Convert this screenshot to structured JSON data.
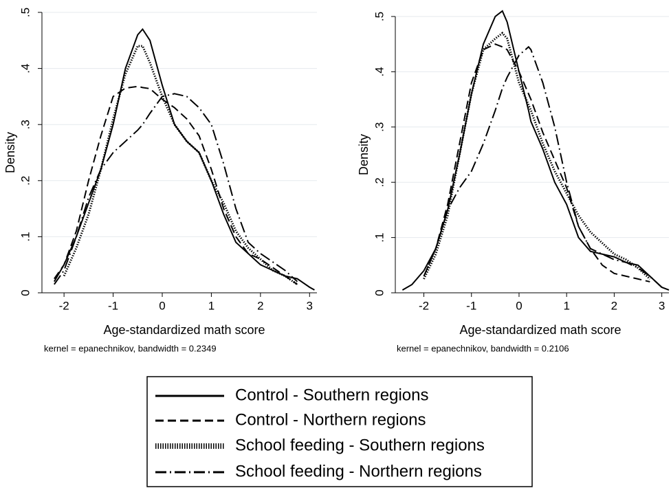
{
  "chart_data": [
    {
      "type": "line",
      "y_label": "Density",
      "x_label": "Age-standardized math score",
      "note": "kernel = epanechnikov, bandwidth = 0.2349",
      "x": [
        -2.2,
        -2,
        -1.75,
        -1.5,
        -1.25,
        -1,
        -0.75,
        -0.5,
        -0.4,
        -0.25,
        0,
        0.25,
        0.5,
        0.75,
        1,
        1.25,
        1.5,
        1.75,
        2,
        2.25,
        2.5,
        2.75,
        3,
        3.1
      ],
      "series": [
        {
          "name": "Control - Southern regions",
          "color": "#000000",
          "line_style": "solid",
          "values": [
            0.02,
            0.05,
            0.1,
            0.16,
            0.22,
            0.3,
            0.4,
            0.46,
            0.47,
            0.45,
            0.37,
            0.3,
            0.27,
            0.25,
            0.2,
            0.14,
            0.09,
            0.07,
            0.05,
            0.04,
            0.03,
            0.025,
            0.01,
            0.005
          ]
        },
        {
          "name": "Control - Northern regions",
          "color": "#000000",
          "line_style": "dashed",
          "values": [
            0.025,
            0.05,
            0.11,
            0.2,
            0.28,
            0.35,
            0.365,
            0.368,
            0.366,
            0.364,
            0.345,
            0.33,
            0.31,
            0.28,
            0.22,
            0.15,
            0.1,
            0.07,
            0.06,
            0.045,
            0.03,
            0.015,
            null,
            null
          ]
        },
        {
          "name": "School feeding - Southern regions",
          "color": "#000000",
          "line_style": "dotted",
          "values": [
            null,
            0.03,
            0.08,
            0.14,
            0.22,
            0.31,
            0.39,
            0.44,
            0.44,
            0.41,
            0.35,
            0.3,
            0.27,
            0.25,
            0.2,
            0.16,
            0.11,
            0.08,
            0.06,
            0.04,
            0.03,
            0.015,
            null,
            null
          ]
        },
        {
          "name": "School feeding - Northern regions",
          "color": "#000000",
          "line_style": "dashdot",
          "values": [
            0.015,
            0.04,
            0.1,
            0.17,
            0.22,
            0.25,
            0.27,
            0.29,
            0.3,
            0.32,
            0.35,
            0.355,
            0.35,
            0.33,
            0.3,
            0.23,
            0.15,
            0.09,
            0.07,
            0.055,
            0.04,
            0.02,
            null,
            null
          ]
        }
      ],
      "xlim": [
        -2.45,
        3.15
      ],
      "xticks": [
        -2,
        -1,
        0,
        1,
        2,
        3
      ],
      "ylim": [
        0,
        0.5
      ],
      "yticks": [
        0,
        {
          "value": 0.1,
          "label": ".1"
        },
        {
          "value": 0.2,
          "label": ".2"
        },
        {
          "value": 0.3,
          "label": ".3"
        },
        {
          "value": 0.4,
          "label": ".4"
        },
        {
          "value": 0.5,
          "label": ".5"
        }
      ],
      "grid": true
    },
    {
      "type": "line",
      "y_label": "Density",
      "x_label": "Age-standardized math score",
      "note": "kernel = epanechnikov, bandwidth = 0.2106",
      "x": [
        -2.45,
        -2.25,
        -2,
        -1.75,
        -1.5,
        -1.25,
        -1,
        -0.75,
        -0.5,
        -0.35,
        -0.25,
        0,
        0.2,
        0.25,
        0.5,
        0.75,
        1,
        1.25,
        1.5,
        1.75,
        2,
        2.25,
        2.5,
        2.75,
        3,
        3.15
      ],
      "series": [
        {
          "name": "Control - Southern regions",
          "color": "#000000",
          "line_style": "solid",
          "values": [
            0.005,
            0.015,
            0.04,
            0.08,
            0.15,
            0.25,
            0.36,
            0.45,
            0.5,
            0.51,
            0.49,
            0.4,
            0.33,
            0.31,
            0.26,
            0.2,
            0.16,
            0.1,
            0.075,
            0.07,
            0.065,
            0.055,
            0.05,
            0.03,
            0.01,
            0.005
          ]
        },
        {
          "name": "Control - Northern regions",
          "color": "#000000",
          "line_style": "dashed",
          "values": [
            null,
            null,
            0.03,
            0.08,
            0.16,
            0.27,
            0.38,
            0.44,
            0.45,
            0.445,
            0.44,
            0.4,
            0.36,
            0.35,
            0.29,
            0.24,
            0.19,
            0.12,
            0.08,
            0.05,
            0.035,
            0.03,
            0.025,
            0.02,
            null,
            null
          ]
        },
        {
          "name": "School feeding - Southern regions",
          "color": "#000000",
          "line_style": "dotted",
          "values": [
            null,
            null,
            0.025,
            0.07,
            0.14,
            0.25,
            0.36,
            0.44,
            0.46,
            0.47,
            0.46,
            0.38,
            0.34,
            0.33,
            0.27,
            0.22,
            0.18,
            0.14,
            0.11,
            0.09,
            0.07,
            0.06,
            0.045,
            0.025,
            null,
            null
          ]
        },
        {
          "name": "School feeding - Northern regions",
          "color": "#000000",
          "line_style": "dashdot",
          "values": [
            null,
            null,
            0.03,
            0.08,
            0.15,
            0.19,
            0.22,
            0.27,
            0.33,
            0.37,
            0.39,
            0.43,
            0.445,
            0.44,
            0.38,
            0.3,
            0.2,
            0.12,
            0.08,
            0.07,
            0.06,
            0.055,
            0.045,
            0.03,
            0.01,
            null
          ]
        }
      ],
      "xlim": [
        -2.6,
        3.15
      ],
      "xticks": [
        -2,
        -1,
        0,
        1,
        2,
        3
      ],
      "ylim": [
        0,
        0.5
      ],
      "yticks": [
        0,
        {
          "value": 0.1,
          "label": ".1"
        },
        {
          "value": 0.2,
          "label": ".2"
        },
        {
          "value": 0.3,
          "label": ".3"
        },
        {
          "value": 0.4,
          "label": ".4"
        },
        {
          "value": 0.5,
          "label": ".5"
        }
      ],
      "grid": true
    }
  ]
}
